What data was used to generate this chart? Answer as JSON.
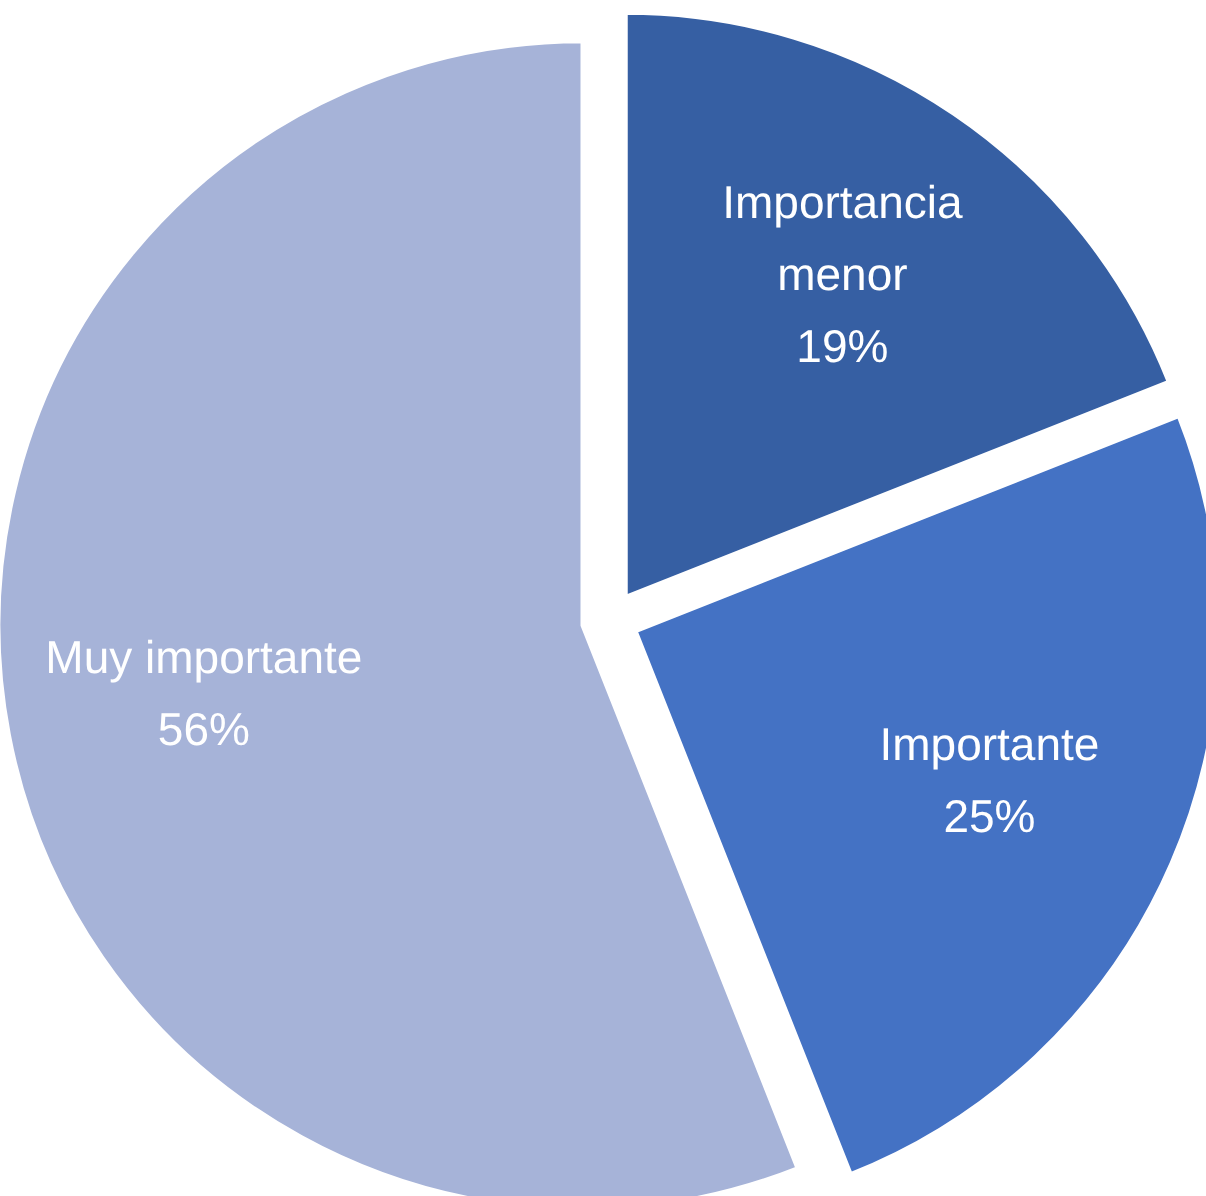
{
  "chart_data": {
    "type": "pie",
    "categories": [
      "Importancia menor",
      "Importante",
      "Muy importante"
    ],
    "values": [
      19,
      25,
      56
    ],
    "colors": [
      "#365fa3",
      "#4472c4",
      "#a6b3d8"
    ],
    "value_labels": [
      "19%",
      "25%",
      "56%"
    ]
  }
}
